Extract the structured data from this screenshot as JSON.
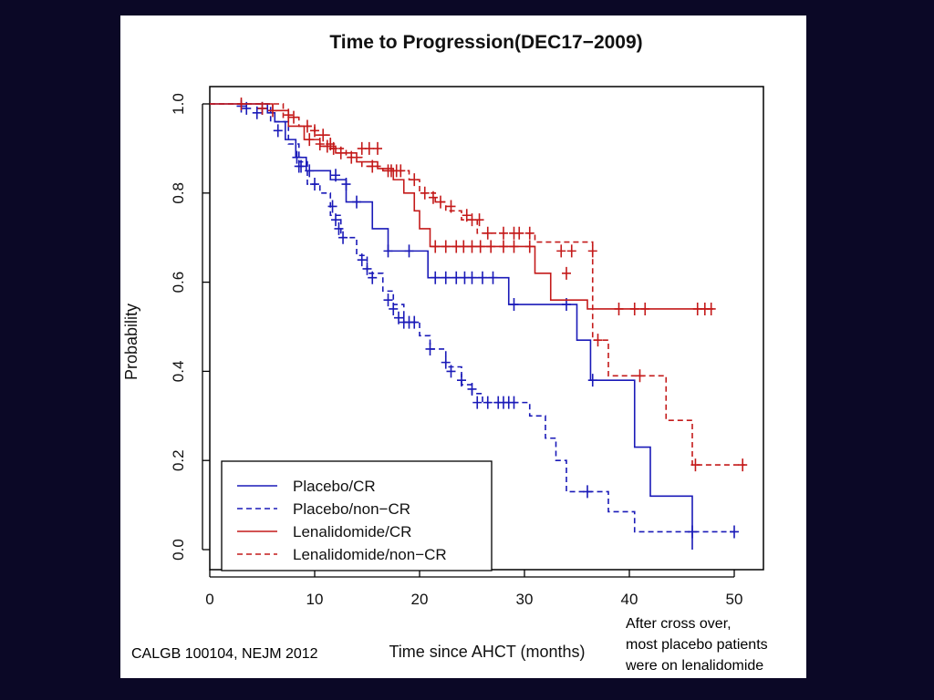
{
  "chart_data": {
    "type": "line",
    "subtype": "kaplan-meier survival curves",
    "title": "Time to Progression(DEC17−2009)",
    "xlabel": "Time since AHCT (months)",
    "ylabel": "Probability",
    "xlim": [
      0,
      52
    ],
    "ylim": [
      -0.04,
      1.04
    ],
    "xticks": [
      0,
      10,
      20,
      30,
      40,
      50
    ],
    "xtick_labels": [
      "0",
      "10",
      "20",
      "30",
      "40",
      "50"
    ],
    "yticks": [
      0.0,
      0.2,
      0.4,
      0.6,
      0.8,
      1.0
    ],
    "ytick_labels": [
      "0.0",
      "0.2",
      "0.4",
      "0.6",
      "0.8",
      "1.0"
    ],
    "grid": false,
    "legend_position": "bottom-left",
    "series": [
      {
        "name": "Placebo/CR",
        "color": "#1a1ab8",
        "dash": "solid",
        "steps": [
          [
            0,
            1.0
          ],
          [
            5.5,
            0.98
          ],
          [
            6.2,
            0.96
          ],
          [
            7.2,
            0.92
          ],
          [
            8.2,
            0.88
          ],
          [
            9.2,
            0.85
          ],
          [
            11.5,
            0.83
          ],
          [
            13,
            0.78
          ],
          [
            15.5,
            0.72
          ],
          [
            17,
            0.67
          ],
          [
            20.8,
            0.61
          ],
          [
            28.5,
            0.55
          ],
          [
            35,
            0.47
          ],
          [
            36.3,
            0.38
          ],
          [
            40.5,
            0.23
          ],
          [
            42,
            0.12
          ],
          [
            46,
            0.0
          ]
        ],
        "censor": [
          [
            3,
            0.995
          ],
          [
            5,
            0.99
          ],
          [
            8.5,
            0.86
          ],
          [
            9.5,
            0.85
          ],
          [
            12,
            0.84
          ],
          [
            13,
            0.82
          ],
          [
            14,
            0.78
          ],
          [
            17,
            0.67
          ],
          [
            19,
            0.67
          ],
          [
            21.5,
            0.61
          ],
          [
            22.5,
            0.61
          ],
          [
            23.5,
            0.61
          ],
          [
            24.3,
            0.61
          ],
          [
            25,
            0.61
          ],
          [
            26,
            0.61
          ],
          [
            27,
            0.61
          ],
          [
            29,
            0.55
          ],
          [
            34,
            0.55
          ],
          [
            36.5,
            0.38
          ],
          [
            46,
            0.04
          ]
        ]
      },
      {
        "name": "Placebo/non−CR",
        "color": "#1a1ab8",
        "dash": "dashed",
        "steps": [
          [
            0,
            1.0
          ],
          [
            5.8,
            0.96
          ],
          [
            7.5,
            0.91
          ],
          [
            8.5,
            0.87
          ],
          [
            9.3,
            0.82
          ],
          [
            10.5,
            0.8
          ],
          [
            11.5,
            0.75
          ],
          [
            12.5,
            0.7
          ],
          [
            14,
            0.66
          ],
          [
            15,
            0.62
          ],
          [
            16.5,
            0.58
          ],
          [
            17.5,
            0.55
          ],
          [
            18.5,
            0.51
          ],
          [
            20,
            0.48
          ],
          [
            21,
            0.45
          ],
          [
            22.5,
            0.41
          ],
          [
            24,
            0.37
          ],
          [
            25,
            0.35
          ],
          [
            26,
            0.33
          ],
          [
            30.5,
            0.3
          ],
          [
            32,
            0.25
          ],
          [
            33,
            0.2
          ],
          [
            34,
            0.13
          ],
          [
            38,
            0.085
          ],
          [
            40.5,
            0.04
          ],
          [
            50,
            0.04
          ]
        ],
        "censor": [
          [
            3.5,
            0.99
          ],
          [
            4.5,
            0.98
          ],
          [
            6.5,
            0.94
          ],
          [
            8.3,
            0.88
          ],
          [
            8.7,
            0.86
          ],
          [
            10,
            0.82
          ],
          [
            11.7,
            0.77
          ],
          [
            12,
            0.74
          ],
          [
            12.3,
            0.72
          ],
          [
            12.7,
            0.7
          ],
          [
            14.5,
            0.65
          ],
          [
            15,
            0.63
          ],
          [
            15.5,
            0.61
          ],
          [
            17,
            0.56
          ],
          [
            17.5,
            0.54
          ],
          [
            18,
            0.52
          ],
          [
            18.5,
            0.51
          ],
          [
            19,
            0.51
          ],
          [
            19.5,
            0.51
          ],
          [
            21,
            0.45
          ],
          [
            22.5,
            0.42
          ],
          [
            23,
            0.4
          ],
          [
            24,
            0.38
          ],
          [
            25,
            0.36
          ],
          [
            25.5,
            0.33
          ],
          [
            26.5,
            0.33
          ],
          [
            27.5,
            0.33
          ],
          [
            28,
            0.33
          ],
          [
            28.5,
            0.33
          ],
          [
            29,
            0.33
          ],
          [
            36,
            0.13
          ],
          [
            50,
            0.04
          ]
        ]
      },
      {
        "name": "Lenalidomide/CR",
        "color": "#c41a1a",
        "dash": "solid",
        "steps": [
          [
            0,
            1.0
          ],
          [
            6,
            0.985
          ],
          [
            7.5,
            0.95
          ],
          [
            9,
            0.92
          ],
          [
            10.5,
            0.905
          ],
          [
            12,
            0.89
          ],
          [
            14,
            0.87
          ],
          [
            16,
            0.855
          ],
          [
            17.5,
            0.83
          ],
          [
            18.5,
            0.8
          ],
          [
            19.5,
            0.76
          ],
          [
            20,
            0.72
          ],
          [
            21,
            0.68
          ],
          [
            31,
            0.62
          ],
          [
            32.5,
            0.56
          ],
          [
            36,
            0.54
          ],
          [
            48,
            0.54
          ]
        ],
        "censor": [
          [
            3,
            1.0
          ],
          [
            6,
            0.985
          ],
          [
            9.5,
            0.92
          ],
          [
            10.5,
            0.91
          ],
          [
            11.2,
            0.905
          ],
          [
            11.8,
            0.9
          ],
          [
            14.5,
            0.9
          ],
          [
            15.2,
            0.9
          ],
          [
            16,
            0.9
          ],
          [
            17.3,
            0.85
          ],
          [
            17.8,
            0.85
          ],
          [
            18.2,
            0.85
          ],
          [
            21.5,
            0.68
          ],
          [
            22.5,
            0.68
          ],
          [
            23.5,
            0.68
          ],
          [
            24.2,
            0.68
          ],
          [
            25,
            0.68
          ],
          [
            25.8,
            0.68
          ],
          [
            26.8,
            0.68
          ],
          [
            28,
            0.68
          ],
          [
            29,
            0.68
          ],
          [
            30.5,
            0.68
          ],
          [
            34,
            0.62
          ],
          [
            39,
            0.54
          ],
          [
            40.5,
            0.54
          ],
          [
            41.5,
            0.54
          ],
          [
            46.5,
            0.54
          ],
          [
            47.2,
            0.54
          ],
          [
            47.8,
            0.54
          ]
        ]
      },
      {
        "name": "Lenalidomide/non−CR",
        "color": "#c41a1a",
        "dash": "dashed",
        "steps": [
          [
            0,
            1.0
          ],
          [
            7,
            0.97
          ],
          [
            8.5,
            0.95
          ],
          [
            10,
            0.93
          ],
          [
            11.5,
            0.9
          ],
          [
            13,
            0.88
          ],
          [
            14.5,
            0.86
          ],
          [
            16.5,
            0.85
          ],
          [
            19,
            0.83
          ],
          [
            20,
            0.8
          ],
          [
            21.5,
            0.78
          ],
          [
            22.5,
            0.76
          ],
          [
            24,
            0.74
          ],
          [
            25.5,
            0.71
          ],
          [
            31,
            0.69
          ],
          [
            36.5,
            0.47
          ],
          [
            38,
            0.39
          ],
          [
            43.5,
            0.29
          ],
          [
            46,
            0.19
          ],
          [
            51,
            0.19
          ]
        ],
        "censor": [
          [
            5,
            0.99
          ],
          [
            7.5,
            0.975
          ],
          [
            8,
            0.97
          ],
          [
            9.3,
            0.95
          ],
          [
            10,
            0.94
          ],
          [
            10.8,
            0.93
          ],
          [
            11.5,
            0.91
          ],
          [
            12.5,
            0.89
          ],
          [
            13.5,
            0.88
          ],
          [
            15.5,
            0.86
          ],
          [
            17,
            0.85
          ],
          [
            19.5,
            0.83
          ],
          [
            20.5,
            0.8
          ],
          [
            21.3,
            0.79
          ],
          [
            22,
            0.78
          ],
          [
            23,
            0.77
          ],
          [
            24.5,
            0.75
          ],
          [
            25,
            0.74
          ],
          [
            25.7,
            0.74
          ],
          [
            26.5,
            0.71
          ],
          [
            28,
            0.71
          ],
          [
            29,
            0.71
          ],
          [
            29.5,
            0.71
          ],
          [
            30.5,
            0.71
          ],
          [
            33.5,
            0.67
          ],
          [
            34.5,
            0.67
          ],
          [
            36.5,
            0.67
          ],
          [
            37,
            0.47
          ],
          [
            41,
            0.39
          ],
          [
            46.3,
            0.19
          ],
          [
            50.8,
            0.19
          ]
        ]
      }
    ]
  },
  "annotations": {
    "citation": "CALGB 100104, NEJM 2012",
    "crossover_lines": [
      "After cross over,",
      "most placebo patients",
      "were on lenalidomide"
    ]
  }
}
